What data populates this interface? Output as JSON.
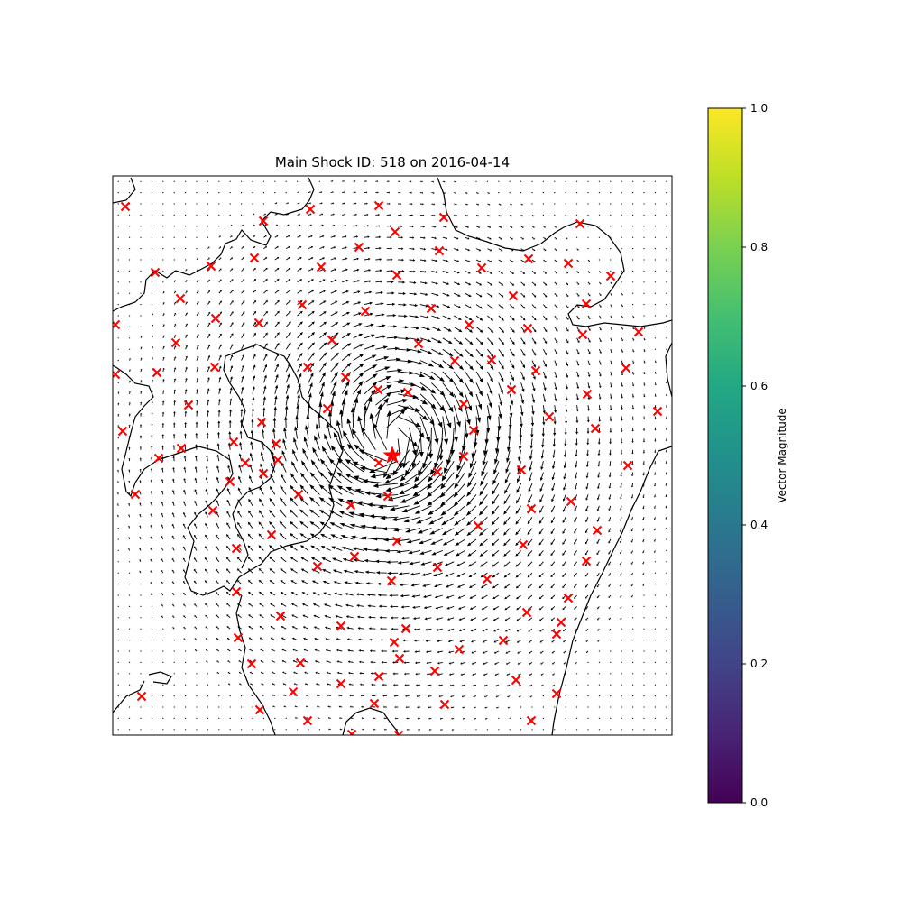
{
  "chart_data": {
    "type": "quiver",
    "title": "Main Shock ID: 518 on 2016-04-14",
    "main_shock": {
      "id": "518",
      "date": "2016-04-14",
      "marker": "star",
      "color": "#ff0000"
    },
    "stations": {
      "marker": "x",
      "color": "#ff0000"
    },
    "vectors": {
      "color": "#000000",
      "field": "swirl around the main shock, strongest just north-east of it",
      "grid_rows": 50,
      "grid_cols": 50
    },
    "colorbar": {
      "label": "Vector Magnitude",
      "colormap": "viridis",
      "range": [
        0.0,
        1.0
      ],
      "ticks": [
        "0.0",
        "0.2",
        "0.4",
        "0.6",
        "0.8",
        "1.0"
      ]
    },
    "axes": {
      "ticks_visible": false
    }
  }
}
